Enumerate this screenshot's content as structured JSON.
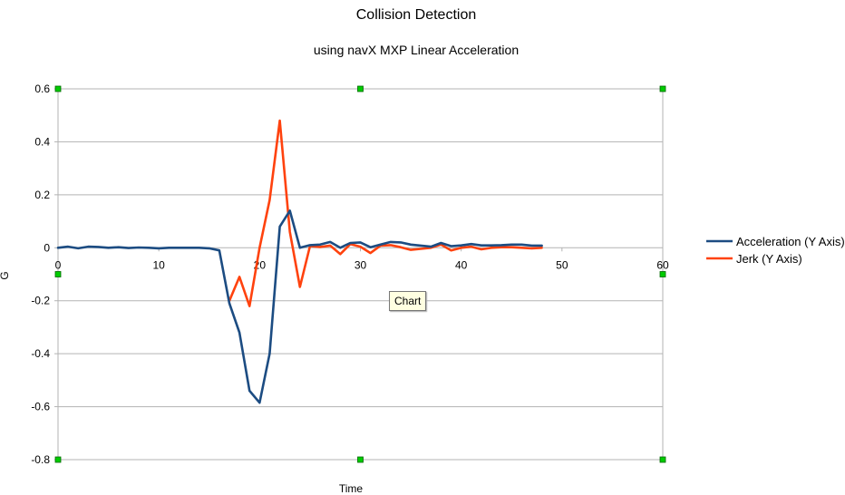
{
  "chart_data": {
    "type": "line",
    "title": "Collision Detection",
    "subtitle": "using navX MXP Linear Acceleration",
    "xlabel": "Time",
    "ylabel": "G",
    "xlim": [
      0,
      60
    ],
    "ylim": [
      -0.8,
      0.6
    ],
    "x_ticks": [
      0,
      10,
      20,
      30,
      40,
      50,
      60
    ],
    "y_ticks": [
      0.6,
      0.4,
      0.2,
      0,
      -0.2,
      -0.4,
      -0.6,
      -0.8
    ],
    "y_tick_labels": [
      "0.6",
      "0.4",
      "0.2",
      "0",
      "-0.2",
      "-0.4",
      "-0.6",
      "-0.8"
    ],
    "grid": true,
    "legend_position": "right",
    "series": [
      {
        "name": "Acceleration (Y Axis)",
        "color": "#1c4c82",
        "x": [
          0,
          1,
          2,
          3,
          4,
          5,
          6,
          7,
          8,
          9,
          10,
          11,
          12,
          13,
          14,
          15,
          16,
          17,
          18,
          19,
          20,
          21,
          22,
          23,
          24,
          25,
          26,
          27,
          28,
          29,
          30,
          31,
          32,
          33,
          34,
          35,
          36,
          37,
          38,
          39,
          40,
          41,
          42,
          43,
          44,
          45,
          46,
          47,
          48
        ],
        "values": [
          0,
          0.004,
          -0.002,
          0.004,
          0.003,
          0,
          0.002,
          -0.001,
          0.001,
          0,
          -0.002,
          0,
          0,
          0,
          0,
          -0.002,
          -0.01,
          -0.21,
          -0.32,
          -0.54,
          -0.585,
          -0.4,
          0.08,
          0.14,
          0,
          0.01,
          0.012,
          0.022,
          0,
          0.018,
          0.02,
          0.002,
          0.012,
          0.022,
          0.02,
          0.012,
          0.008,
          0.004,
          0.018,
          0.006,
          0.009,
          0.014,
          0.009,
          0.009,
          0.01,
          0.012,
          0.012,
          0.008,
          0.008
        ]
      },
      {
        "name": "Jerk (Y Axis)",
        "color": "#ff420e",
        "x": [
          17,
          18,
          19,
          20,
          21,
          22,
          23,
          24,
          25,
          26,
          27,
          28,
          29,
          30,
          31,
          32,
          33,
          34,
          35,
          36,
          37,
          38,
          39,
          40,
          41,
          42,
          43,
          44,
          45,
          46,
          47,
          48
        ],
        "values": [
          -0.2,
          -0.11,
          -0.22,
          0,
          0.18,
          0.48,
          0.06,
          -0.148,
          0.006,
          0.003,
          0.008,
          -0.024,
          0.014,
          0.004,
          -0.02,
          0.008,
          0.01,
          0.002,
          -0.008,
          -0.004,
          0,
          0.012,
          -0.01,
          0,
          0.004,
          -0.006,
          0,
          0.002,
          0.002,
          0,
          -0.002,
          0
        ]
      }
    ]
  },
  "tooltip": {
    "label": "Chart"
  }
}
